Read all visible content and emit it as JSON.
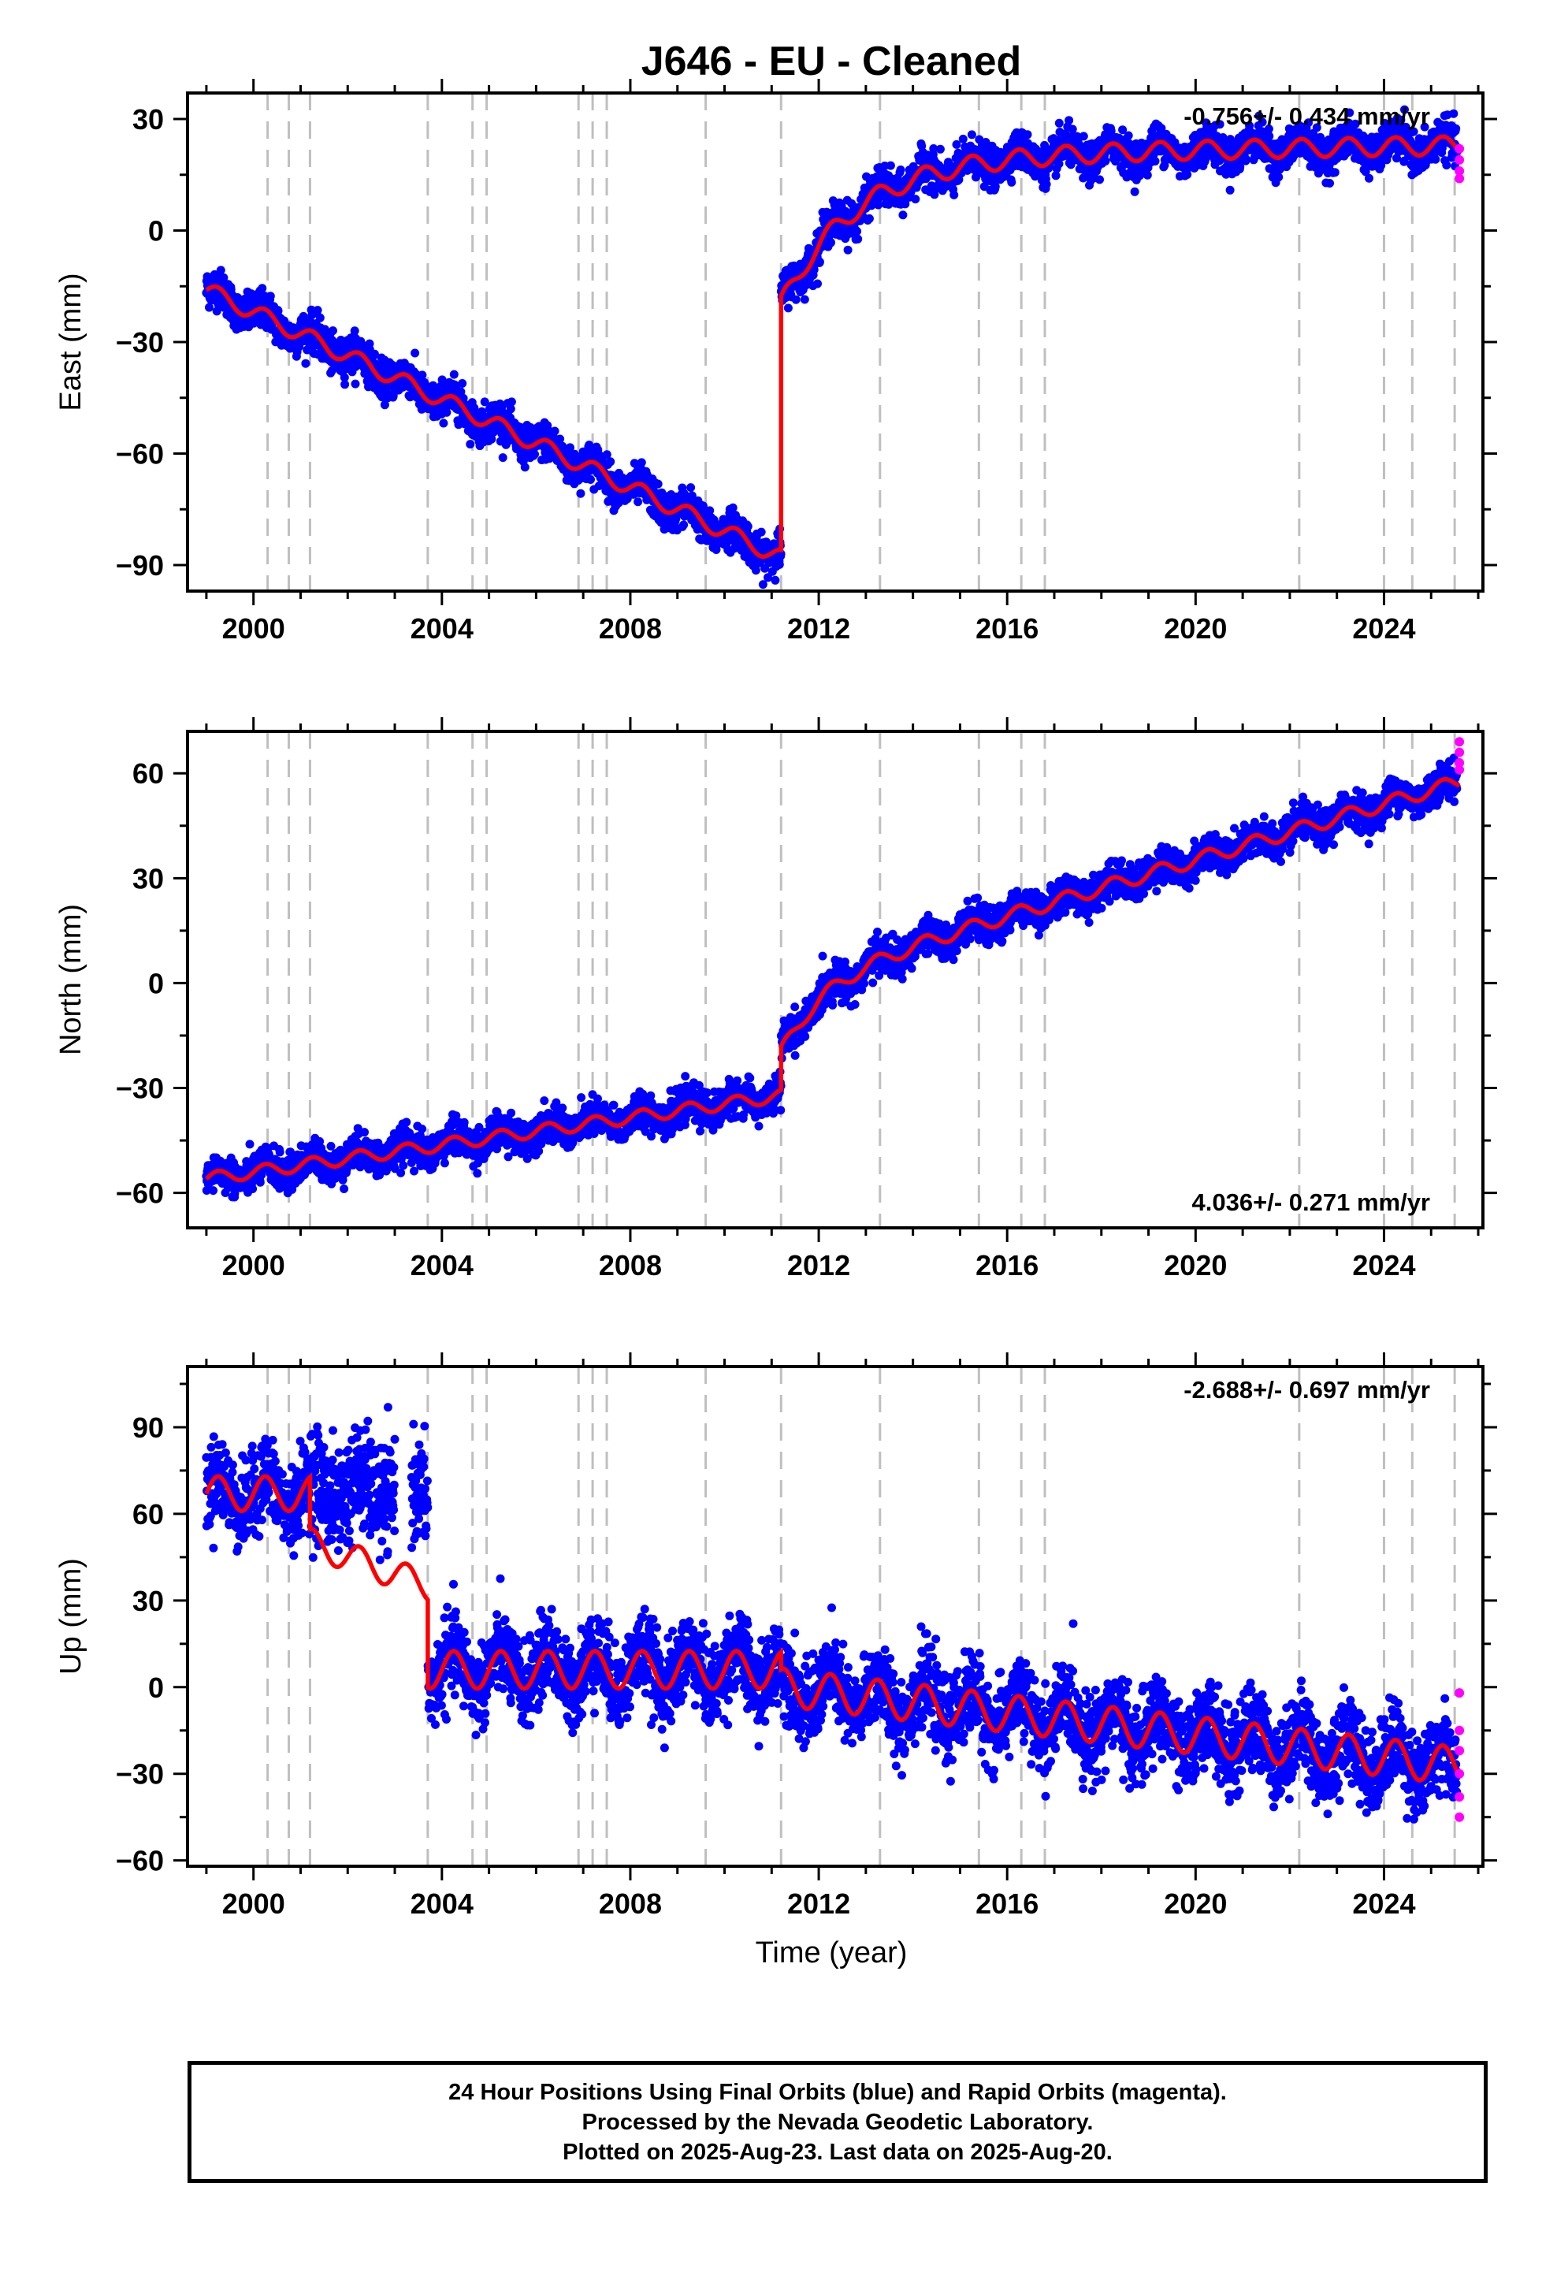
{
  "title": "J646  - EU - Cleaned",
  "x_label": "Time (year)",
  "footer": {
    "line1": "24 Hour Positions Using Final Orbits (blue) and Rapid Orbits (magenta).",
    "line2": "Processed by the Nevada Geodetic Laboratory.",
    "line3": "Plotted on 2025-Aug-23. Last data on 2025-Aug-20."
  },
  "colors": {
    "final": "#0000ff",
    "rapid": "#ff00ff",
    "model": "#ff0000",
    "event_lines": "#bfbfbf"
  },
  "chart_data": [
    {
      "type": "scatter",
      "panel": "east",
      "ylabel": "East (mm)",
      "xlim": [
        1998.6,
        2026.1
      ],
      "ylim": [
        -97,
        37
      ],
      "x_ticks": [
        2000,
        2004,
        2008,
        2012,
        2016,
        2020,
        2024
      ],
      "y_ticks": [
        -90,
        -60,
        -30,
        0,
        30
      ],
      "annotation": "-0.756+/- 0.434 mm/yr",
      "annotation_position": "top-right",
      "event_lines": [
        2000.3,
        2000.75,
        2001.2,
        2003.7,
        2004.65,
        2004.95,
        2006.9,
        2007.2,
        2007.5,
        2009.6,
        2011.2,
        2013.3,
        2015.4,
        2016.3,
        2016.8,
        2022.2,
        2024.0,
        2024.6,
        2025.5
      ],
      "model": {
        "segments": [
          {
            "x_start": 1999.0,
            "x_end": 2011.2,
            "y0": -16,
            "slope": -5.9,
            "t0": 1999.0,
            "amp": 2.2,
            "phase": 0.0
          },
          {
            "x_start": 2011.2,
            "x_end": 2025.6,
            "type": "postseismic",
            "y0": -20,
            "y_inf": 20,
            "tau": 1.6,
            "slope": 0.2,
            "t0": 2011.2,
            "amp": 2.5,
            "phase": 0.0
          }
        ]
      },
      "scatter_sigma": 2.5,
      "rapid_points": [
        [
          2025.6,
          22
        ],
        [
          2025.6,
          19
        ],
        [
          2025.6,
          16
        ],
        [
          2025.6,
          14
        ]
      ]
    },
    {
      "type": "scatter",
      "panel": "north",
      "ylabel": "North (mm)",
      "xlim": [
        1998.6,
        2026.1
      ],
      "ylim": [
        -70,
        72
      ],
      "x_ticks": [
        2000,
        2004,
        2008,
        2012,
        2016,
        2020,
        2024
      ],
      "y_ticks": [
        -60,
        -30,
        0,
        30,
        60
      ],
      "annotation": "4.036+/- 0.271 mm/yr",
      "annotation_position": "bottom-right",
      "event_lines": [
        2000.3,
        2000.75,
        2001.2,
        2003.7,
        2004.65,
        2004.95,
        2006.9,
        2007.2,
        2007.5,
        2009.6,
        2011.2,
        2013.3,
        2015.4,
        2016.3,
        2016.8,
        2022.2,
        2024.0,
        2024.6,
        2025.5
      ],
      "model": {
        "segments": [
          {
            "x_start": 1999.0,
            "x_end": 2011.2,
            "y0": -56,
            "slope": 1.95,
            "t0": 1999.0,
            "amp": 1.8,
            "phase": 0.0
          },
          {
            "x_start": 2011.2,
            "x_end": 2025.6,
            "type": "postseismic",
            "y0": -20,
            "y_inf": 0,
            "tau": 0.9,
            "slope": 4.0,
            "t0": 2011.2,
            "amp": 2.0,
            "phase": 0.0
          }
        ]
      },
      "scatter_sigma": 2.5,
      "rapid_points": [
        [
          2025.6,
          69
        ],
        [
          2025.6,
          66
        ],
        [
          2025.6,
          63
        ],
        [
          2025.6,
          61
        ]
      ]
    },
    {
      "type": "scatter",
      "panel": "up",
      "ylabel": "Up (mm)",
      "xlim": [
        1998.6,
        2026.1
      ],
      "ylim": [
        -62,
        111
      ],
      "x_ticks": [
        2000,
        2004,
        2008,
        2012,
        2016,
        2020,
        2024
      ],
      "y_ticks": [
        -60,
        -30,
        0,
        30,
        60,
        90
      ],
      "annotation": "-2.688+/- 0.697 mm/yr",
      "annotation_position": "top-right",
      "event_lines": [
        2000.3,
        2000.75,
        2001.2,
        2003.7,
        2004.65,
        2004.95,
        2006.9,
        2007.2,
        2007.5,
        2009.6,
        2011.2,
        2013.3,
        2015.4,
        2016.3,
        2016.8,
        2022.2,
        2024.0,
        2024.6,
        2025.5
      ],
      "model": {
        "segments": [
          {
            "x_start": 1999.0,
            "x_end": 2001.2,
            "y0": 67,
            "slope": 0.0,
            "t0": 1999.0,
            "amp": 6.0,
            "phase": 0.0
          },
          {
            "x_start": 2001.2,
            "x_end": 2003.7,
            "y0": 50,
            "slope": -6.0,
            "t0": 2001.2,
            "amp": 5.0,
            "phase": 0.0
          },
          {
            "x_start": 2003.7,
            "x_end": 2011.2,
            "y0": 6,
            "slope": 0.0,
            "t0": 2003.7,
            "amp": 6.5,
            "phase": 0.0
          },
          {
            "x_start": 2011.2,
            "x_end": 2025.6,
            "y0": 0,
            "slope": -1.9,
            "t0": 2011.2,
            "amp": 6.5,
            "phase": 0.0
          }
        ]
      },
      "scatter_sigma": 7.0,
      "data_gap": [
        2003.0,
        2003.35
      ],
      "rapid_points": [
        [
          2025.6,
          -2
        ],
        [
          2025.6,
          -15
        ],
        [
          2025.6,
          -22
        ],
        [
          2025.6,
          -30
        ],
        [
          2025.6,
          -38
        ],
        [
          2025.6,
          -45
        ]
      ]
    }
  ]
}
